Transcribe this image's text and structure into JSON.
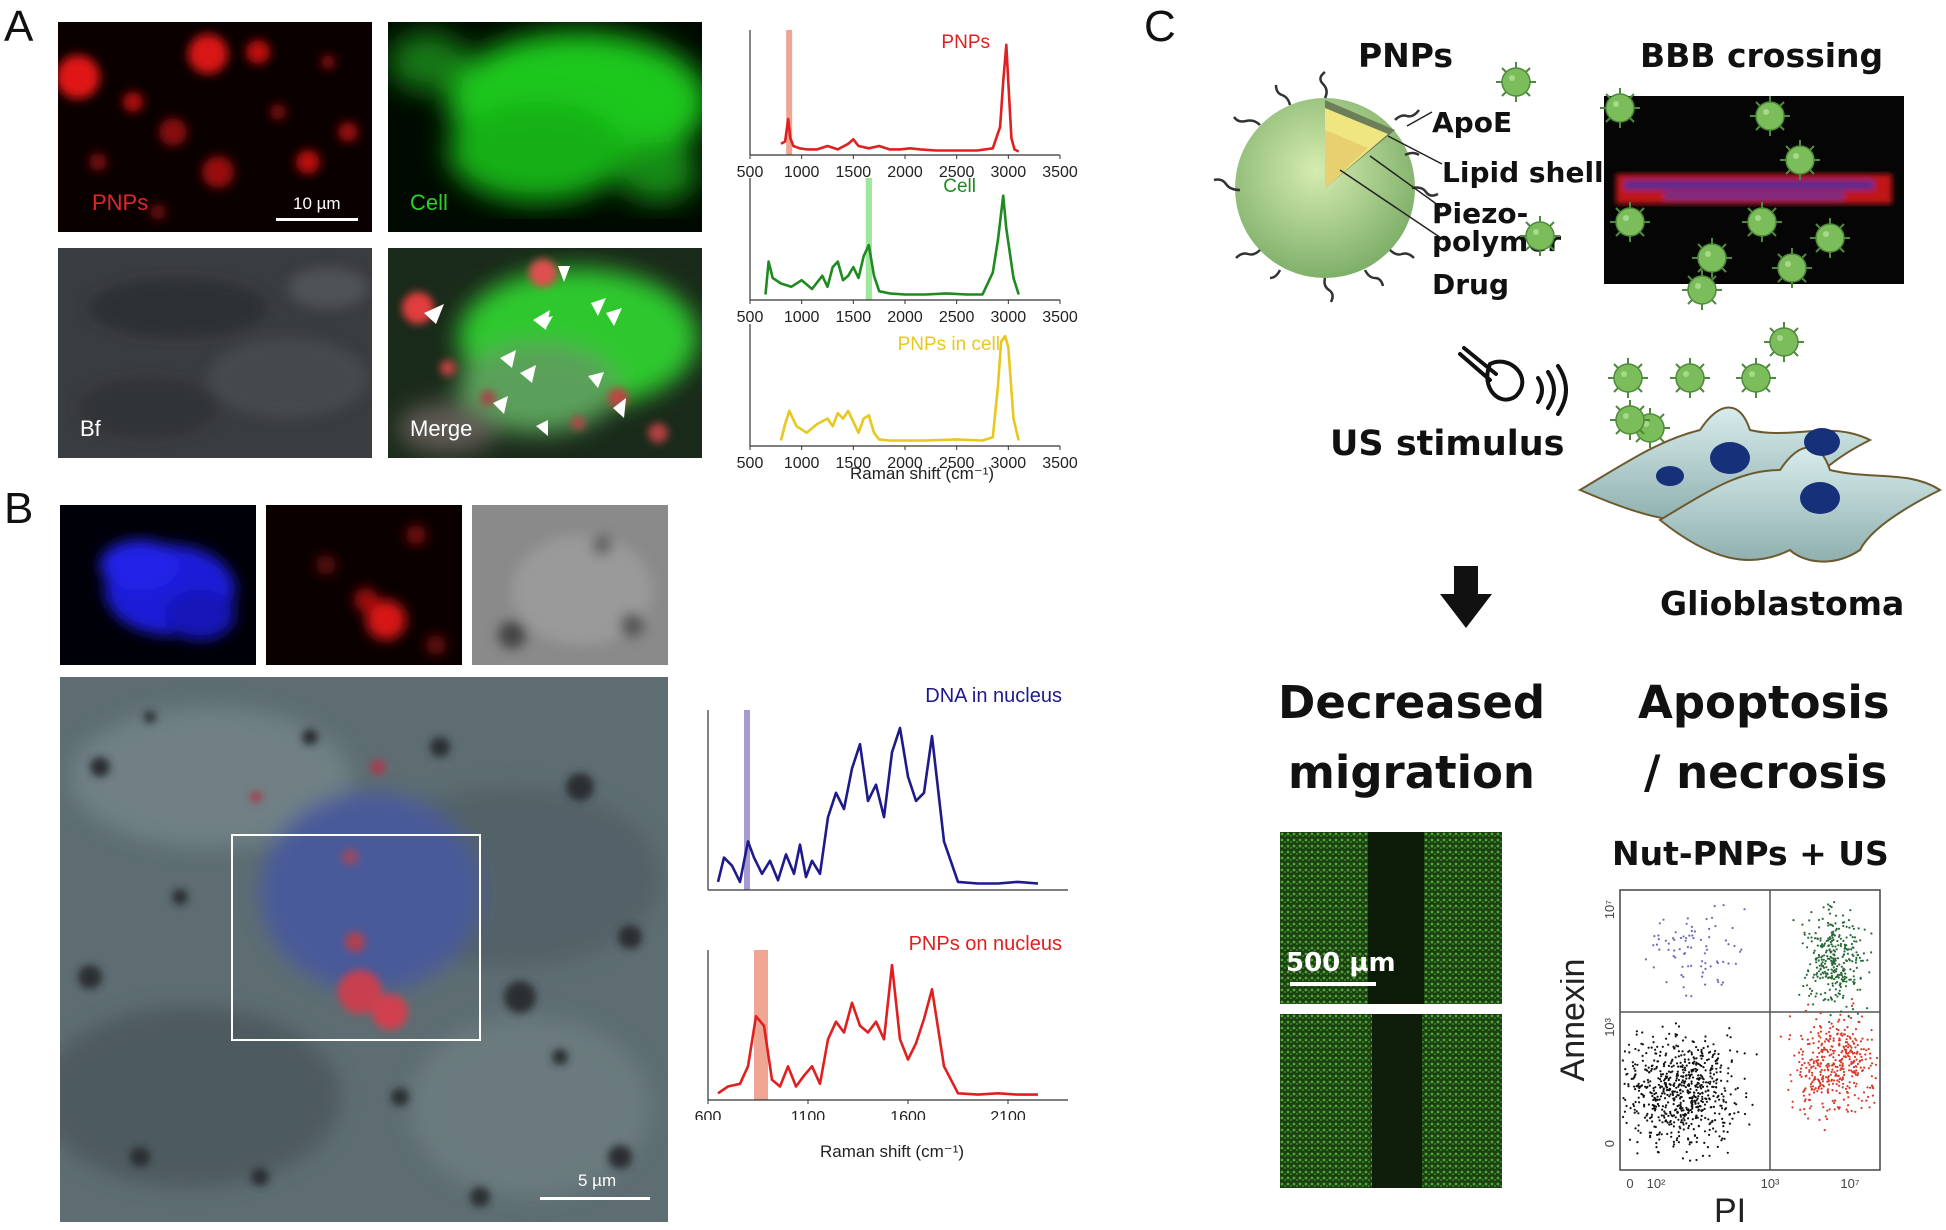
{
  "figure": {
    "panel_a": {
      "letter": "A",
      "images": {
        "pnps_label": "PNPs",
        "cell_label": "Cell",
        "bf_label": "Bf",
        "merge_label": "Merge",
        "scale_label": "10 µm"
      },
      "x_axis_label": "Raman shift (cm⁻¹)"
    },
    "panel_b": {
      "letter": "B",
      "scale_label": "5 µm",
      "x_axis_label": "Raman shift (cm⁻¹)"
    },
    "panel_c": {
      "letter": "C",
      "pnps_title": "PNPs",
      "bbb_title": "BBB crossing",
      "labels": {
        "apoe": "ApoE",
        "lipid": "Lipid shell",
        "piezo": "Piezo-\npolymer",
        "drug": "Drug"
      },
      "us_stimulus": "US stimulus",
      "glioblastoma": "Glioblastoma",
      "decreased_line1": "Decreased",
      "decreased_line2": "migration",
      "apoptosis_line1": "Apoptosis",
      "apoptosis_line2": "/ necrosis",
      "scale_500": "500 µm",
      "flow_title": "Nut-PNPs + US",
      "flow_y": "Annexin",
      "flow_x": "PI",
      "flow_x_ticks": [
        "0",
        "10²",
        "10³",
        "10⁷"
      ],
      "flow_y_ticks": [
        "10⁷",
        "10³",
        "0"
      ]
    },
    "colors": {
      "red": "#e02020",
      "green": "#1f8a1f",
      "yellow": "#e8c81c",
      "navy": "#1e1a8c",
      "highlight_red": "#e8876f",
      "highlight_green": "#7ee07e",
      "highlight_purple": "#8a78c0"
    }
  },
  "chart_data": [
    {
      "type": "line",
      "title": "PNPs",
      "x_ticks": [
        500,
        1000,
        1500,
        2000,
        2500,
        3000,
        3500
      ],
      "xlim": [
        500,
        3500
      ],
      "highlight_range": [
        850,
        900
      ],
      "series": [
        {
          "name": "PNPs",
          "color": "#e02020",
          "x": [
            800,
            840,
            870,
            890,
            920,
            980,
            1050,
            1150,
            1250,
            1350,
            1450,
            1500,
            1550,
            1650,
            1750,
            1850,
            1950,
            2050,
            2150,
            2300,
            2500,
            2700,
            2850,
            2920,
            2950,
            2980,
            3000,
            3030,
            3060,
            3100
          ],
          "y": [
            0.1,
            0.12,
            0.32,
            0.15,
            0.08,
            0.06,
            0.05,
            0.05,
            0.08,
            0.05,
            0.1,
            0.14,
            0.08,
            0.06,
            0.08,
            0.05,
            0.05,
            0.06,
            0.05,
            0.04,
            0.04,
            0.04,
            0.06,
            0.25,
            0.65,
            0.98,
            0.65,
            0.15,
            0.05,
            0.03
          ]
        }
      ]
    },
    {
      "type": "line",
      "title": "Cell",
      "x_ticks": [
        500,
        1000,
        1500,
        2000,
        2500,
        3000,
        3500
      ],
      "xlim": [
        500,
        3500
      ],
      "highlight_range": [
        1620,
        1680
      ],
      "series": [
        {
          "name": "Cell",
          "color": "#1f8a1f",
          "x": [
            650,
            680,
            720,
            800,
            900,
            1000,
            1100,
            1200,
            1250,
            1300,
            1350,
            1400,
            1450,
            1500,
            1550,
            1600,
            1650,
            1700,
            1750,
            1850,
            2000,
            2200,
            2400,
            2600,
            2750,
            2850,
            2900,
            2950,
            2980,
            3050,
            3100
          ],
          "y": [
            0.05,
            0.35,
            0.2,
            0.15,
            0.12,
            0.18,
            0.1,
            0.22,
            0.12,
            0.3,
            0.35,
            0.18,
            0.22,
            0.3,
            0.2,
            0.4,
            0.5,
            0.22,
            0.08,
            0.06,
            0.05,
            0.05,
            0.06,
            0.05,
            0.05,
            0.25,
            0.55,
            0.95,
            0.65,
            0.2,
            0.05
          ]
        }
      ]
    },
    {
      "type": "line",
      "title": "PNPs in cell",
      "x_ticks": [
        500,
        1000,
        1500,
        2000,
        2500,
        3000,
        3500
      ],
      "xlim": [
        500,
        3500
      ],
      "series": [
        {
          "name": "PNPs in cell",
          "color": "#e8c81c",
          "x": [
            800,
            840,
            880,
            950,
            1050,
            1150,
            1250,
            1300,
            1350,
            1400,
            1450,
            1500,
            1550,
            1600,
            1650,
            1700,
            1750,
            1850,
            2000,
            2200,
            2500,
            2750,
            2850,
            2900,
            2930,
            2970,
            3000,
            3050,
            3100
          ],
          "y": [
            0.05,
            0.2,
            0.32,
            0.18,
            0.12,
            0.2,
            0.25,
            0.18,
            0.3,
            0.25,
            0.32,
            0.22,
            0.12,
            0.25,
            0.28,
            0.12,
            0.06,
            0.05,
            0.05,
            0.05,
            0.06,
            0.05,
            0.08,
            0.55,
            0.95,
            1.0,
            0.9,
            0.25,
            0.05
          ]
        }
      ]
    },
    {
      "type": "line",
      "title": "DNA in nucleus",
      "x_ticks": [
        600,
        1100,
        1600,
        2100
      ],
      "xlim": [
        600,
        2400
      ],
      "highlight_range": [
        780,
        810
      ],
      "series": [
        {
          "name": "DNA in nucleus",
          "color": "#1e1a8c",
          "x": [
            650,
            680,
            720,
            760,
            800,
            830,
            870,
            910,
            950,
            990,
            1030,
            1060,
            1090,
            1120,
            1160,
            1200,
            1240,
            1280,
            1320,
            1360,
            1400,
            1440,
            1480,
            1520,
            1560,
            1600,
            1640,
            1680,
            1720,
            1780,
            1850,
            1950,
            2050,
            2150,
            2250
          ],
          "y": [
            0.05,
            0.2,
            0.15,
            0.05,
            0.3,
            0.2,
            0.1,
            0.18,
            0.06,
            0.22,
            0.1,
            0.28,
            0.08,
            0.18,
            0.1,
            0.45,
            0.6,
            0.5,
            0.75,
            0.9,
            0.55,
            0.65,
            0.45,
            0.85,
            1.0,
            0.7,
            0.55,
            0.6,
            0.95,
            0.3,
            0.05,
            0.04,
            0.04,
            0.05,
            0.04
          ]
        }
      ]
    },
    {
      "type": "line",
      "title": "PNPs on nucleus",
      "x_ticks": [
        600,
        1100,
        1600,
        2100
      ],
      "xlim": [
        600,
        2400
      ],
      "highlight_range": [
        830,
        900
      ],
      "series": [
        {
          "name": "PNPs on nucleus",
          "color": "#e02020",
          "x": [
            650,
            700,
            760,
            800,
            840,
            880,
            920,
            960,
            1000,
            1040,
            1080,
            1120,
            1160,
            1200,
            1240,
            1280,
            1320,
            1360,
            1400,
            1440,
            1480,
            1520,
            1560,
            1600,
            1640,
            1680,
            1720,
            1780,
            1850,
            1950,
            2050,
            2150,
            2250
          ],
          "y": [
            0.05,
            0.1,
            0.12,
            0.25,
            0.62,
            0.55,
            0.15,
            0.1,
            0.25,
            0.1,
            0.18,
            0.25,
            0.12,
            0.45,
            0.58,
            0.5,
            0.72,
            0.55,
            0.5,
            0.58,
            0.45,
            1.0,
            0.45,
            0.3,
            0.42,
            0.6,
            0.82,
            0.25,
            0.05,
            0.04,
            0.05,
            0.04,
            0.04
          ]
        }
      ]
    }
  ]
}
